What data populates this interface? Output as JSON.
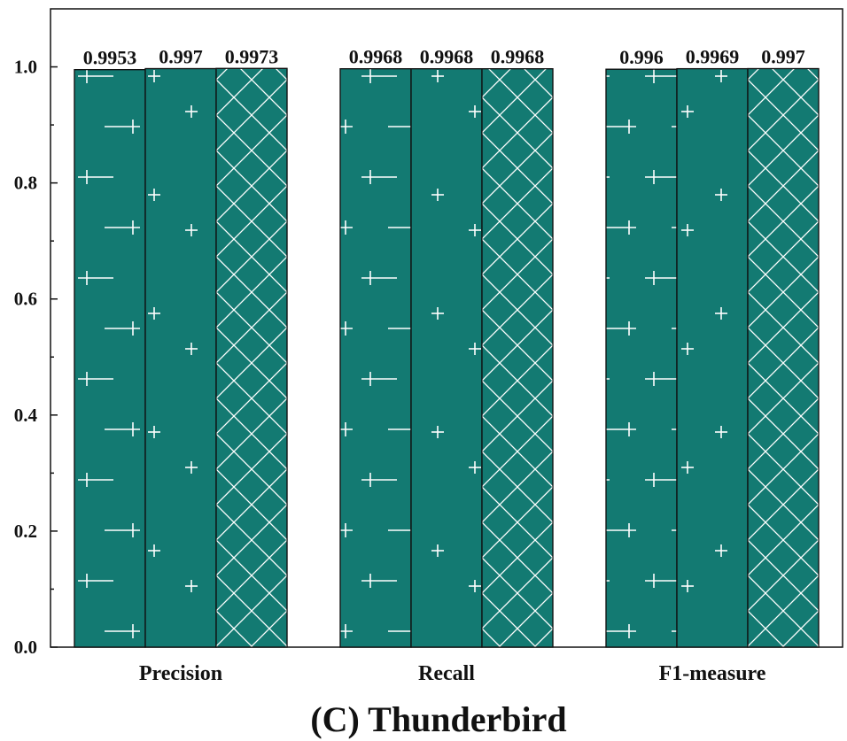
{
  "chart_data": {
    "type": "bar",
    "title": "(C) Thunderbird",
    "categories": [
      "Precision",
      "Recall",
      "F1-measure"
    ],
    "series": [
      {
        "values": [
          0.9953,
          0.9968,
          0.996
        ],
        "labels": [
          "0.9953",
          "0.9968",
          "0.996"
        ],
        "pattern": "long-dash-cross"
      },
      {
        "values": [
          0.997,
          0.9968,
          0.9969
        ],
        "labels": [
          "0.997",
          "0.9968",
          "0.9969"
        ],
        "pattern": "small-cross"
      },
      {
        "values": [
          0.9973,
          0.9968,
          0.997
        ],
        "labels": [
          "0.9973",
          "0.9968",
          "0.997"
        ],
        "pattern": "diamond-crosshatch"
      }
    ],
    "xlabel": "",
    "ylabel": "",
    "ylim": [
      0,
      1.1
    ],
    "yticks": [
      "0.0",
      "0.2",
      "0.4",
      "0.6",
      "0.8",
      "1.0"
    ],
    "bar_color": "#137a72",
    "pattern_color": "#ffffff",
    "grid": false,
    "legend": false
  }
}
